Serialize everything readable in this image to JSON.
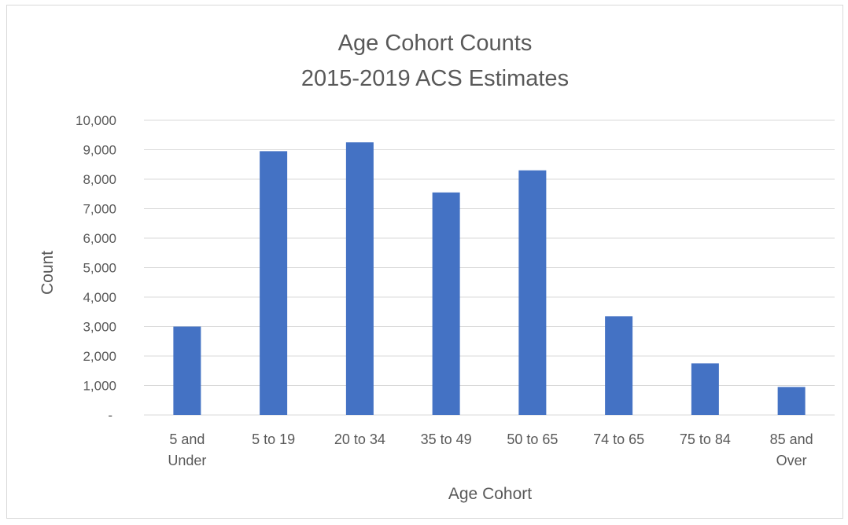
{
  "chart_data": {
    "type": "bar",
    "title": "Age Cohort Counts",
    "subtitle": "2015-2019 ACS Estimates",
    "xlabel": "Age Cohort",
    "ylabel": "Count",
    "categories": [
      [
        "5 and",
        "Under"
      ],
      [
        "5 to 19"
      ],
      [
        "20 to 34"
      ],
      [
        "35 to 49"
      ],
      [
        "50 to 65"
      ],
      [
        "74 to 65"
      ],
      [
        "75 to 84"
      ],
      [
        "85 and",
        "Over"
      ]
    ],
    "values": [
      3000,
      8950,
      9250,
      7550,
      8300,
      3350,
      1750,
      950
    ],
    "ylim": [
      0,
      10000
    ],
    "yticks": [
      0,
      1000,
      2000,
      3000,
      4000,
      5000,
      6000,
      7000,
      8000,
      9000,
      10000
    ],
    "ytick_labels": [
      "-",
      "1,000",
      "2,000",
      "3,000",
      "4,000",
      "5,000",
      "6,000",
      "7,000",
      "8,000",
      "9,000",
      "10,000"
    ],
    "bar_color": "#4472c4",
    "gridline_color": "#d9d9d9",
    "grid": true,
    "legend": "none"
  }
}
